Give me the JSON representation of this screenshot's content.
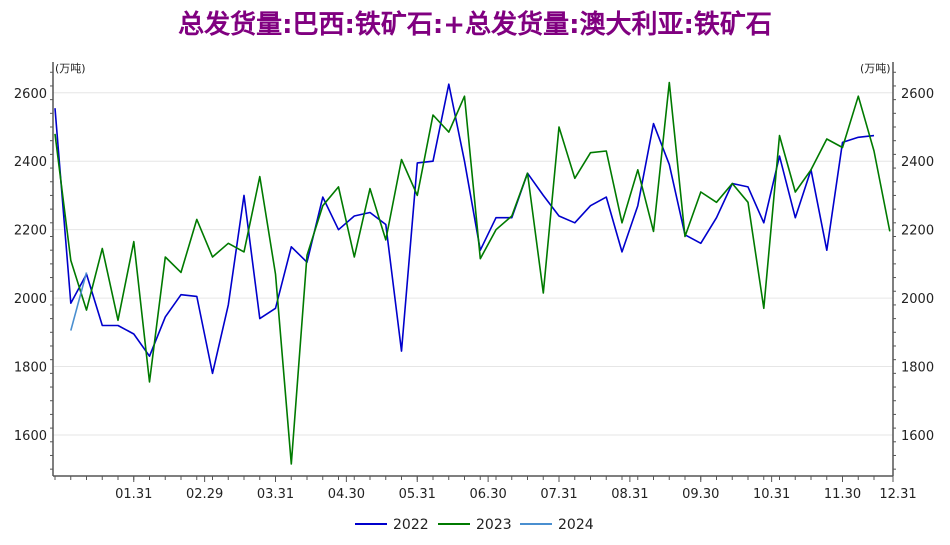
{
  "chart_data": {
    "type": "line",
    "title": "总发货量:巴西:铁矿石:+总发货量:澳大利亚:铁矿石",
    "unit_left": "(万吨)",
    "unit_right": "(万吨)",
    "ylim": [
      1480,
      2690
    ],
    "y_ticks": [
      1600,
      1800,
      2000,
      2200,
      2400,
      2600
    ],
    "x_range": [
      0,
      52
    ],
    "x_ticks": [
      {
        "pos": 5,
        "label": "01.31"
      },
      {
        "pos": 9.5,
        "label": "02.29"
      },
      {
        "pos": 14,
        "label": "03.31"
      },
      {
        "pos": 18.5,
        "label": "04.30"
      },
      {
        "pos": 23,
        "label": "05.31"
      },
      {
        "pos": 27.5,
        "label": "06.30"
      },
      {
        "pos": 32,
        "label": "07.31"
      },
      {
        "pos": 36.5,
        "label": "08.31"
      },
      {
        "pos": 41,
        "label": "09.30"
      },
      {
        "pos": 45.5,
        "label": "10.31"
      },
      {
        "pos": 50,
        "label": "11.30"
      },
      {
        "pos": 54,
        "label": "12.31"
      }
    ],
    "grid": true,
    "legend_position": "bottom",
    "series": [
      {
        "name": "2022",
        "color": "#0000cc",
        "x": [
          0,
          1,
          2,
          3,
          4,
          5,
          6,
          7,
          8,
          9,
          10,
          11,
          12,
          13,
          14,
          15,
          16,
          17,
          18,
          19,
          20,
          21,
          22,
          23,
          24,
          25,
          26,
          27,
          28,
          29,
          30,
          31,
          32,
          33,
          34,
          35,
          36,
          37,
          38,
          39,
          40,
          41,
          42,
          43,
          44,
          45,
          46,
          47,
          48,
          49,
          50,
          51,
          52
        ],
        "values": [
          2555,
          1985,
          2070,
          1920,
          1920,
          1895,
          1830,
          1945,
          2010,
          2005,
          1780,
          1980,
          2300,
          1940,
          1970,
          2150,
          2105,
          2295,
          2200,
          2240,
          2250,
          2215,
          1845,
          2395,
          2400,
          2625,
          2400,
          2140,
          2235,
          2235,
          2365,
          2300,
          2240,
          2220,
          2270,
          2295,
          2135,
          2270,
          2510,
          2390,
          2185,
          2160,
          2235,
          2335,
          2325,
          2220,
          2415,
          2235,
          2375,
          2140,
          2455,
          2470,
          2475
        ]
      },
      {
        "name": "2023",
        "color": "#007a00",
        "x": [
          0,
          1,
          2,
          3,
          4,
          5,
          6,
          7,
          8,
          9,
          10,
          11,
          12,
          13,
          14,
          15,
          16,
          17,
          18,
          19,
          20,
          21,
          22,
          23,
          24,
          25,
          26,
          27,
          28,
          29,
          30,
          31,
          32,
          33,
          34,
          35,
          36,
          37,
          38,
          39,
          40,
          41,
          42,
          43,
          44,
          45,
          46,
          47,
          48,
          49,
          50,
          51,
          52,
          53
        ],
        "values": [
          2480,
          2110,
          1965,
          2145,
          1935,
          2165,
          1755,
          2120,
          2075,
          2230,
          2120,
          2160,
          2135,
          2355,
          2070,
          1515,
          2125,
          2270,
          2325,
          2120,
          2320,
          2170,
          2405,
          2300,
          2535,
          2485,
          2590,
          2115,
          2200,
          2240,
          2365,
          2015,
          2500,
          2350,
          2425,
          2430,
          2220,
          2375,
          2195,
          2630,
          2180,
          2310,
          2280,
          2335,
          2280,
          1970,
          2475,
          2310,
          2375,
          2465,
          2440,
          2590,
          2430,
          2195
        ]
      },
      {
        "name": "2024",
        "color": "#4a8fd0",
        "x": [
          1,
          2
        ],
        "values": [
          1905,
          2075
        ]
      }
    ]
  }
}
